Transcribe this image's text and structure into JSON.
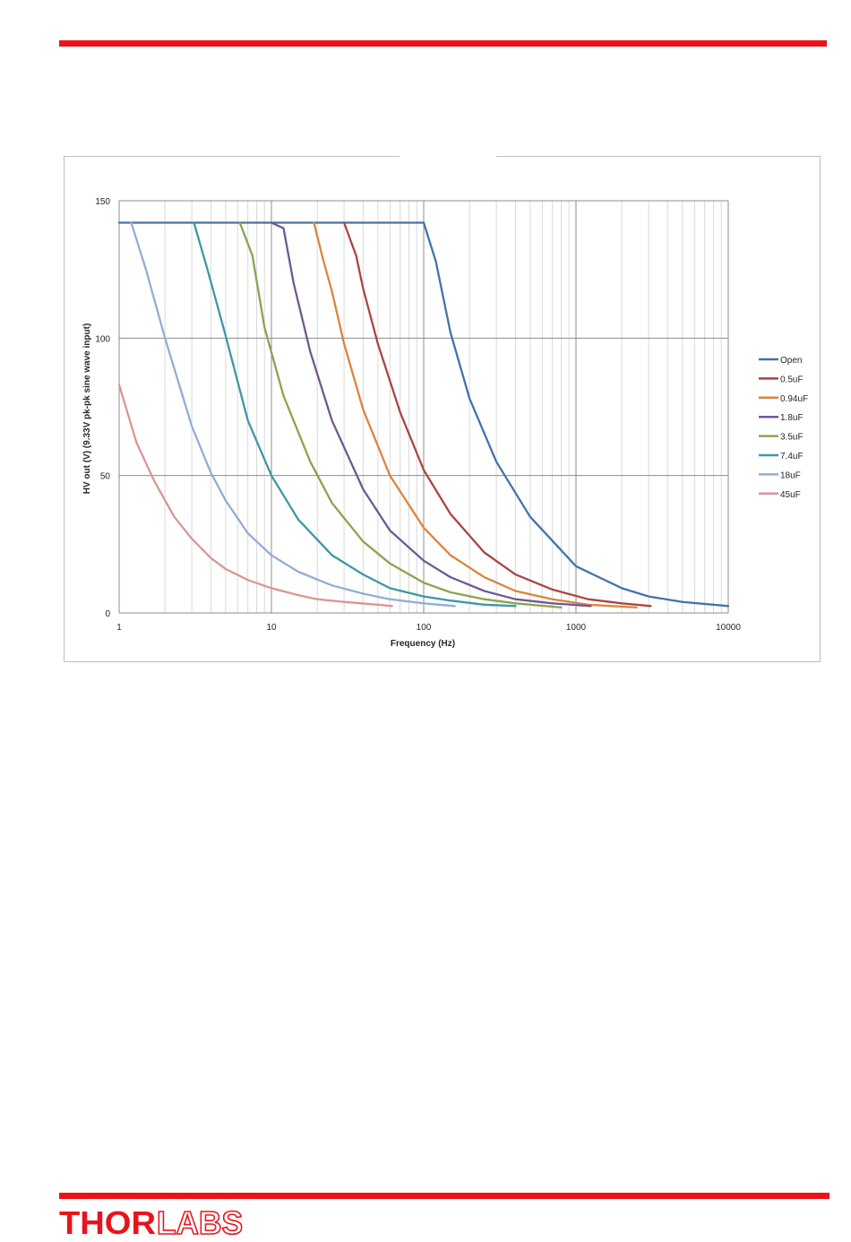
{
  "brand": {
    "logo_text": "THORLABS",
    "logo_bold": "THOR",
    "logo_outline": "LABS",
    "accent_color": "#e8141c"
  },
  "chart_data": {
    "type": "line",
    "title": "",
    "xlabel": "Frequency (Hz)",
    "ylabel": "HV out (V) (9.33V pk-pk sine wave input)",
    "x_scale": "log",
    "xlim": [
      1,
      10000
    ],
    "ylim": [
      0,
      150
    ],
    "x_ticks": [
      "1",
      "10",
      "100",
      "1000",
      "10000"
    ],
    "y_ticks": [
      "0",
      "50",
      "100",
      "150"
    ],
    "grid": true,
    "legend_position": "right",
    "series": [
      {
        "name": "Open",
        "color": "#4572a7",
        "x": [
          1,
          100,
          120,
          150,
          200,
          300,
          500,
          1000,
          2000,
          3000,
          5000,
          10000
        ],
        "y": [
          142,
          142,
          128,
          102,
          78,
          55,
          35,
          17,
          9,
          6,
          4,
          2.5
        ]
      },
      {
        "name": "0.5uF",
        "color": "#aa4643",
        "x": [
          30,
          36,
          40,
          50,
          70,
          100,
          150,
          250,
          400,
          700,
          1200,
          2000,
          3100
        ],
        "y": [
          142,
          130,
          118,
          98,
          73,
          52,
          36,
          22,
          14,
          8.5,
          5,
          3.5,
          2.5
        ]
      },
      {
        "name": "0.94uF",
        "color": "#db843d",
        "x": [
          19,
          22,
          25,
          30,
          40,
          60,
          100,
          150,
          250,
          400,
          700,
          1200,
          2500
        ],
        "y": [
          142,
          128,
          117,
          98,
          74,
          50,
          31,
          21,
          13,
          8,
          5,
          3,
          2
        ]
      },
      {
        "name": "1.8uF",
        "color": "#71588f",
        "x": [
          10,
          12,
          14,
          18,
          25,
          40,
          60,
          100,
          150,
          250,
          400,
          700,
          1250
        ],
        "y": [
          142,
          140,
          120,
          95,
          70,
          45,
          30,
          19,
          13,
          8,
          5,
          3.5,
          2.5
        ]
      },
      {
        "name": "3.5uF",
        "color": "#89a54e",
        "x": [
          6.2,
          7.5,
          9,
          12,
          18,
          25,
          40,
          60,
          100,
          150,
          250,
          400,
          800
        ],
        "y": [
          142,
          130,
          104,
          79,
          55,
          40,
          26,
          18,
          11,
          7.5,
          5,
          3.5,
          2
        ]
      },
      {
        "name": "7.4uF",
        "color": "#3e97a6",
        "x": [
          3.1,
          3.8,
          5,
          7,
          10,
          15,
          25,
          40,
          60,
          100,
          150,
          250,
          400
        ],
        "y": [
          142,
          125,
          101,
          70,
          50,
          34,
          21,
          14,
          9,
          6,
          4.5,
          3,
          2.5
        ]
      },
      {
        "name": "18uF",
        "color": "#93aed4",
        "x": [
          1.2,
          1.5,
          2,
          3,
          4,
          5,
          7,
          10,
          15,
          25,
          40,
          60,
          100,
          160
        ],
        "y": [
          142,
          125,
          100,
          68,
          51,
          41,
          29,
          21,
          15,
          10,
          7,
          5,
          3.5,
          2.5
        ]
      },
      {
        "name": "45uF",
        "color": "#d99694",
        "x": [
          1,
          1.3,
          1.7,
          2.3,
          3,
          4,
          5,
          7,
          10,
          15,
          20,
          30,
          50,
          62
        ],
        "y": [
          83,
          62,
          48,
          35,
          27,
          20,
          16,
          12,
          9,
          6.5,
          5,
          4,
          3,
          2.5
        ]
      }
    ]
  }
}
